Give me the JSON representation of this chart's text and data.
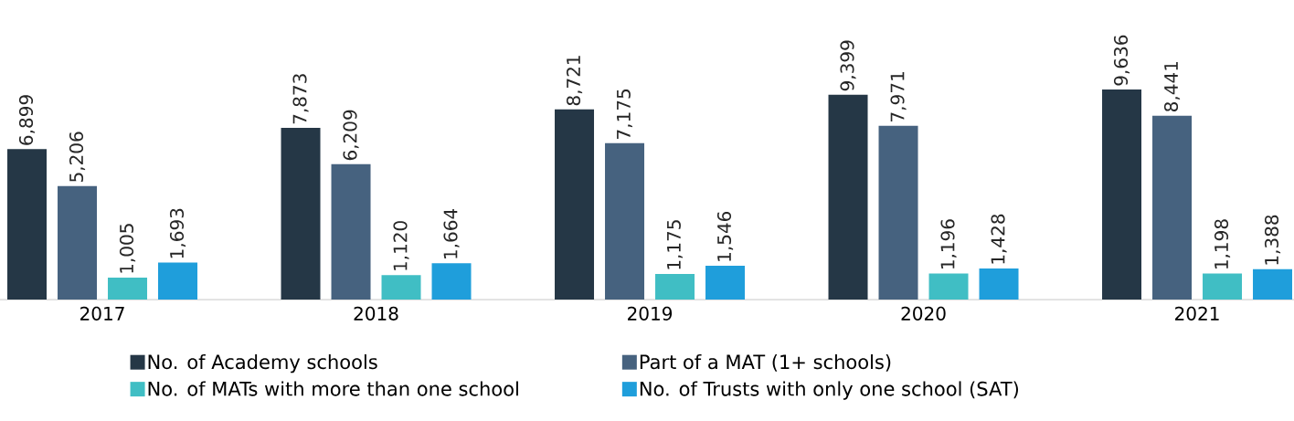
{
  "chart_data": {
    "type": "bar",
    "categories": [
      "2017",
      "2018",
      "2019",
      "2020",
      "2021"
    ],
    "series": [
      {
        "name": "No. of Academy schools",
        "color": "#253746",
        "values": [
          6899,
          7873,
          8721,
          9399,
          9636
        ],
        "value_labels": [
          "6,899",
          "7,873",
          "8,721",
          "9,399",
          "9,636"
        ]
      },
      {
        "name": "Part of a MAT (1+ schools)",
        "color": "#46627f",
        "values": [
          5206,
          6209,
          7175,
          7971,
          8441
        ],
        "value_labels": [
          "5,206",
          "6,209",
          "7,175",
          "7,971",
          "8,441"
        ]
      },
      {
        "name": "No. of MATs with more than one school",
        "color": "#40bec4",
        "values": [
          1005,
          1120,
          1175,
          1196,
          1198
        ],
        "value_labels": [
          "1,005",
          "1,120",
          "1,175",
          "1,196",
          "1,198"
        ]
      },
      {
        "name": "No. of Trusts with only one school (SAT)",
        "color": "#1f9edb",
        "values": [
          1693,
          1664,
          1546,
          1428,
          1388
        ],
        "value_labels": [
          "1,693",
          "1,664",
          "1,546",
          "1,428",
          "1,388"
        ]
      }
    ],
    "legend": "bottom"
  }
}
